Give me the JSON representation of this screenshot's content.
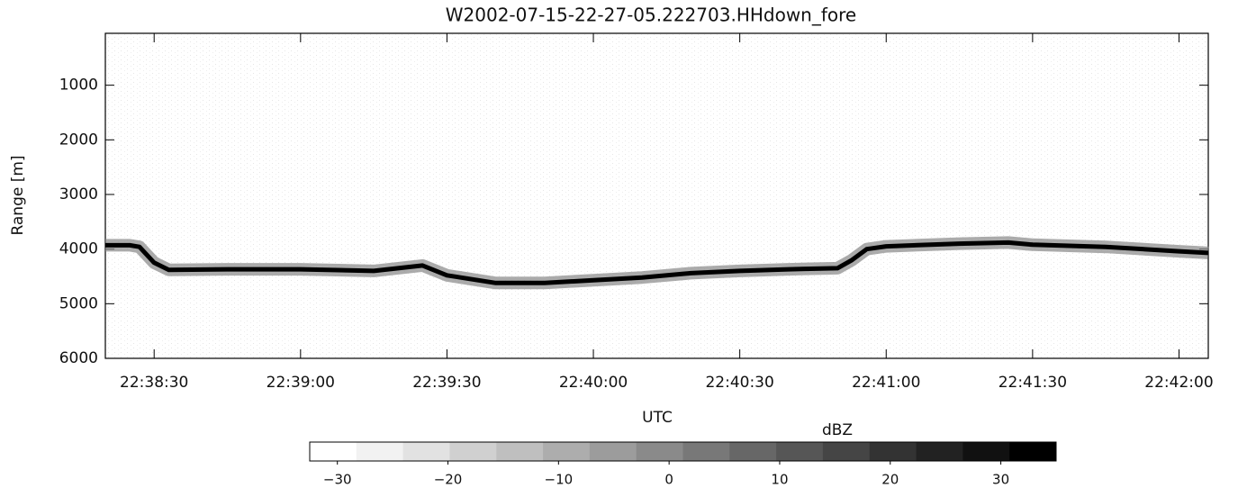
{
  "chart_data": [
    {
      "type": "line",
      "title": "W2002-07-15-22-27-05.222703.HHdown_fore",
      "x_label": "UTC",
      "y_label": "Range [m]",
      "x": [
        "22:38:20",
        "22:38:25",
        "22:38:27",
        "22:38:30",
        "22:38:33",
        "22:38:45",
        "22:39:00",
        "22:39:15",
        "22:39:25",
        "22:39:30",
        "22:39:40",
        "22:39:50",
        "22:40:00",
        "22:40:10",
        "22:40:20",
        "22:40:30",
        "22:40:40",
        "22:40:50",
        "22:40:53",
        "22:40:56",
        "22:41:00",
        "22:41:15",
        "22:41:25",
        "22:41:30",
        "22:41:45",
        "22:42:00",
        "22:42:06"
      ],
      "values": [
        3930,
        3930,
        3960,
        4250,
        4380,
        4370,
        4370,
        4400,
        4300,
        4480,
        4620,
        4620,
        4570,
        4520,
        4440,
        4400,
        4370,
        4350,
        4200,
        4000,
        3950,
        3900,
        3880,
        3920,
        3960,
        4040,
        4070
      ],
      "color": "#000000",
      "xlim": [
        "22:38:20",
        "22:42:06"
      ],
      "xticks": [
        "22:38:30",
        "22:39:00",
        "22:39:30",
        "22:40:00",
        "22:40:30",
        "22:41:00",
        "22:41:30",
        "22:42:00"
      ],
      "ylim": [
        6000,
        50
      ],
      "yticks": [
        1000,
        2000,
        3000,
        4000,
        5000,
        6000
      ]
    },
    {
      "type": "colorbar",
      "title": "dBZ",
      "xlim": [
        -32.5,
        35
      ],
      "xticks": [
        {
          "value": -30,
          "label": "−30"
        },
        {
          "value": -20,
          "label": "−20"
        },
        {
          "value": -10,
          "label": "−10"
        },
        0,
        10,
        20,
        30
      ],
      "colors": [
        "#ffffff",
        "#f2f2f2",
        "#e2e2e2",
        "#d0d0d0",
        "#bfbfbf",
        "#adadad",
        "#9c9c9c",
        "#8a8a8a",
        "#787878",
        "#676767",
        "#565656",
        "#454545",
        "#333333",
        "#222222",
        "#111111",
        "#000000"
      ]
    }
  ]
}
